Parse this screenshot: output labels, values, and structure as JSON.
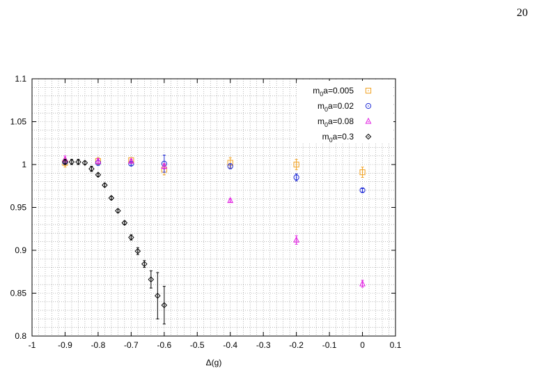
{
  "page": {
    "number": "20"
  },
  "chart_data": {
    "type": "scatter",
    "title": "",
    "xlabel": "Δ(g)",
    "ylabel": "",
    "xlim": [
      -1,
      0.1
    ],
    "ylim": [
      0.8,
      1.1
    ],
    "xticks": [
      "-1",
      "-0.9",
      "-0.8",
      "-0.7",
      "-0.6",
      "-0.5",
      "-0.4",
      "-0.3",
      "-0.2",
      "-0.1",
      "0",
      "0.1"
    ],
    "xtick_values": [
      -1,
      -0.9,
      -0.8,
      -0.7,
      -0.6,
      -0.5,
      -0.4,
      -0.3,
      -0.2,
      -0.1,
      0,
      0.1
    ],
    "yticks": [
      "0.8",
      "0.85",
      "0.9",
      "0.95",
      "1",
      "1.05",
      "1.1"
    ],
    "ytick_values": [
      0.8,
      0.85,
      0.9,
      0.95,
      1.0,
      1.05,
      1.1
    ],
    "grid": "on (major and minor, dotted)",
    "legend_position": "top-right",
    "series": [
      {
        "name": "m0a=0.005",
        "legend_base": "m",
        "legend_sub": "0",
        "legend_rest": "a=0.005",
        "marker": "square",
        "color": "#f0a020",
        "points": [
          {
            "x": -0.9,
            "y": 1.002,
            "err": 0.005
          },
          {
            "x": -0.8,
            "y": 1.004,
            "err": 0.004
          },
          {
            "x": -0.7,
            "y": 1.005,
            "err": 0.003
          },
          {
            "x": -0.6,
            "y": 0.994,
            "err": 0.006
          },
          {
            "x": -0.4,
            "y": 1.002,
            "err": 0.006
          },
          {
            "x": -0.2,
            "y": 1.0,
            "err": 0.006
          },
          {
            "x": 0.0,
            "y": 0.991,
            "err": 0.006
          }
        ]
      },
      {
        "name": "m0a=0.02",
        "legend_base": "m",
        "legend_sub": "0",
        "legend_rest": "a=0.02",
        "marker": "circle",
        "color": "#1f2bd6",
        "points": [
          {
            "x": -0.9,
            "y": 1.003,
            "err": 0.003
          },
          {
            "x": -0.8,
            "y": 1.002,
            "err": 0.003
          },
          {
            "x": -0.7,
            "y": 1.001,
            "err": 0.002
          },
          {
            "x": -0.6,
            "y": 1.001,
            "err": 0.01
          },
          {
            "x": -0.4,
            "y": 0.998,
            "err": 0.003
          },
          {
            "x": -0.2,
            "y": 0.985,
            "err": 0.004
          },
          {
            "x": 0.0,
            "y": 0.97,
            "err": 0.002
          }
        ]
      },
      {
        "name": "m0a=0.08",
        "legend_base": "m",
        "legend_sub": "0",
        "legend_rest": "a=0.08",
        "marker": "triangle",
        "color": "#e020e0",
        "points": [
          {
            "x": -0.9,
            "y": 1.006,
            "err": 0.004
          },
          {
            "x": -0.8,
            "y": 1.004,
            "err": 0.003
          },
          {
            "x": -0.7,
            "y": 1.004,
            "err": 0.002
          },
          {
            "x": -0.6,
            "y": 0.998,
            "err": 0.003
          },
          {
            "x": -0.4,
            "y": 0.958,
            "err": 0.002
          },
          {
            "x": -0.2,
            "y": 0.912,
            "err": 0.005
          },
          {
            "x": 0.0,
            "y": 0.861,
            "err": 0.004
          }
        ]
      },
      {
        "name": "m0a=0.3",
        "legend_base": "m",
        "legend_sub": "0",
        "legend_rest": "a=0.3",
        "marker": "diamond",
        "color": "#000000",
        "points": [
          {
            "x": -0.9,
            "y": 1.003,
            "err": 0.003
          },
          {
            "x": -0.88,
            "y": 1.003,
            "err": 0.003
          },
          {
            "x": -0.86,
            "y": 1.003,
            "err": 0.003
          },
          {
            "x": -0.84,
            "y": 1.002,
            "err": 0.002
          },
          {
            "x": -0.82,
            "y": 0.995,
            "err": 0.003
          },
          {
            "x": -0.8,
            "y": 0.988,
            "err": 0.002
          },
          {
            "x": -0.78,
            "y": 0.976,
            "err": 0.002
          },
          {
            "x": -0.76,
            "y": 0.961,
            "err": 0.002
          },
          {
            "x": -0.74,
            "y": 0.946,
            "err": 0.002
          },
          {
            "x": -0.72,
            "y": 0.932,
            "err": 0.002
          },
          {
            "x": -0.7,
            "y": 0.915,
            "err": 0.003
          },
          {
            "x": -0.68,
            "y": 0.899,
            "err": 0.004
          },
          {
            "x": -0.66,
            "y": 0.884,
            "err": 0.004
          },
          {
            "x": -0.64,
            "y": 0.866,
            "err": 0.01
          },
          {
            "x": -0.62,
            "y": 0.847,
            "err": 0.027
          },
          {
            "x": -0.6,
            "y": 0.836,
            "err": 0.022
          }
        ]
      }
    ]
  }
}
